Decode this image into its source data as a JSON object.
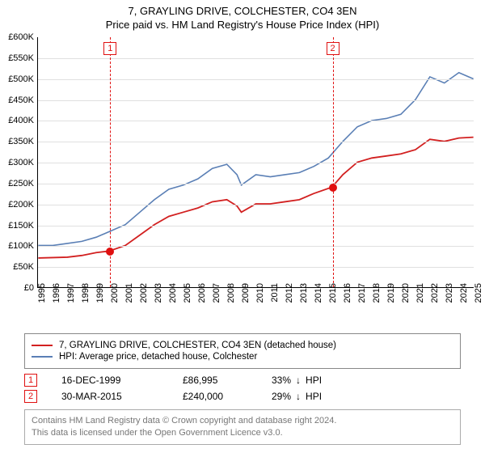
{
  "title_line1": "7, GRAYLING DRIVE, COLCHESTER, CO4 3EN",
  "title_line2": "Price paid vs. HM Land Registry's House Price Index (HPI)",
  "chart": {
    "type": "line",
    "background_color": "#ffffff",
    "grid_color": "#e0e0e0",
    "axis_color": "#000000",
    "font_size_axis": 11,
    "font_size_title": 13,
    "y": {
      "min": 0,
      "max": 600000,
      "step": 50000,
      "prefix": "£",
      "suffix_k": "K"
    },
    "x": {
      "min": 1995,
      "max": 2025,
      "step": 1
    },
    "series": [
      {
        "name": "7, GRAYLING DRIVE, COLCHESTER, CO4 3EN (detached house)",
        "color": "#d22020",
        "width": 1.8,
        "points": [
          [
            1995,
            70000
          ],
          [
            1996,
            71000
          ],
          [
            1997,
            72000
          ],
          [
            1998,
            76000
          ],
          [
            1999,
            83000
          ],
          [
            1999.96,
            86995
          ],
          [
            2000,
            88000
          ],
          [
            2001,
            100000
          ],
          [
            2002,
            125000
          ],
          [
            2003,
            150000
          ],
          [
            2004,
            170000
          ],
          [
            2005,
            180000
          ],
          [
            2006,
            190000
          ],
          [
            2007,
            205000
          ],
          [
            2008,
            210000
          ],
          [
            2008.7,
            195000
          ],
          [
            2009,
            180000
          ],
          [
            2010,
            200000
          ],
          [
            2011,
            200000
          ],
          [
            2012,
            205000
          ],
          [
            2013,
            210000
          ],
          [
            2014,
            225000
          ],
          [
            2015.25,
            240000
          ],
          [
            2016,
            270000
          ],
          [
            2017,
            300000
          ],
          [
            2018,
            310000
          ],
          [
            2019,
            315000
          ],
          [
            2020,
            320000
          ],
          [
            2021,
            330000
          ],
          [
            2022,
            355000
          ],
          [
            2023,
            350000
          ],
          [
            2024,
            358000
          ],
          [
            2025,
            360000
          ]
        ]
      },
      {
        "name": "HPI: Average price, detached house, Colchester",
        "color": "#5a7fb5",
        "width": 1.6,
        "points": [
          [
            1995,
            100000
          ],
          [
            1996,
            100000
          ],
          [
            1997,
            105000
          ],
          [
            1998,
            110000
          ],
          [
            1999,
            120000
          ],
          [
            2000,
            135000
          ],
          [
            2001,
            150000
          ],
          [
            2002,
            180000
          ],
          [
            2003,
            210000
          ],
          [
            2004,
            235000
          ],
          [
            2005,
            245000
          ],
          [
            2006,
            260000
          ],
          [
            2007,
            285000
          ],
          [
            2008,
            295000
          ],
          [
            2008.7,
            270000
          ],
          [
            2009,
            245000
          ],
          [
            2010,
            270000
          ],
          [
            2011,
            265000
          ],
          [
            2012,
            270000
          ],
          [
            2013,
            275000
          ],
          [
            2014,
            290000
          ],
          [
            2015,
            310000
          ],
          [
            2016,
            350000
          ],
          [
            2017,
            385000
          ],
          [
            2018,
            400000
          ],
          [
            2019,
            405000
          ],
          [
            2020,
            415000
          ],
          [
            2021,
            450000
          ],
          [
            2022,
            505000
          ],
          [
            2023,
            490000
          ],
          [
            2024,
            515000
          ],
          [
            2025,
            500000
          ]
        ]
      }
    ],
    "markers": [
      {
        "n": "1",
        "x": 1999.96,
        "y": 86995,
        "dot_color": "#e01010"
      },
      {
        "n": "2",
        "x": 2015.25,
        "y": 240000,
        "dot_color": "#e01010"
      }
    ]
  },
  "legend": {
    "items": [
      {
        "label": "7, GRAYLING DRIVE, COLCHESTER, CO4 3EN (detached house)",
        "color": "#d22020"
      },
      {
        "label": "HPI: Average price, detached house, Colchester",
        "color": "#5a7fb5"
      }
    ]
  },
  "sales": [
    {
      "n": "1",
      "date": "16-DEC-1999",
      "price": "£86,995",
      "delta": "33%",
      "arrow": "↓",
      "vs": "HPI"
    },
    {
      "n": "2",
      "date": "30-MAR-2015",
      "price": "£240,000",
      "delta": "29%",
      "arrow": "↓",
      "vs": "HPI"
    }
  ],
  "footer": {
    "line1": "Contains HM Land Registry data © Crown copyright and database right 2024.",
    "line2": "This data is licensed under the Open Government Licence v3.0."
  }
}
